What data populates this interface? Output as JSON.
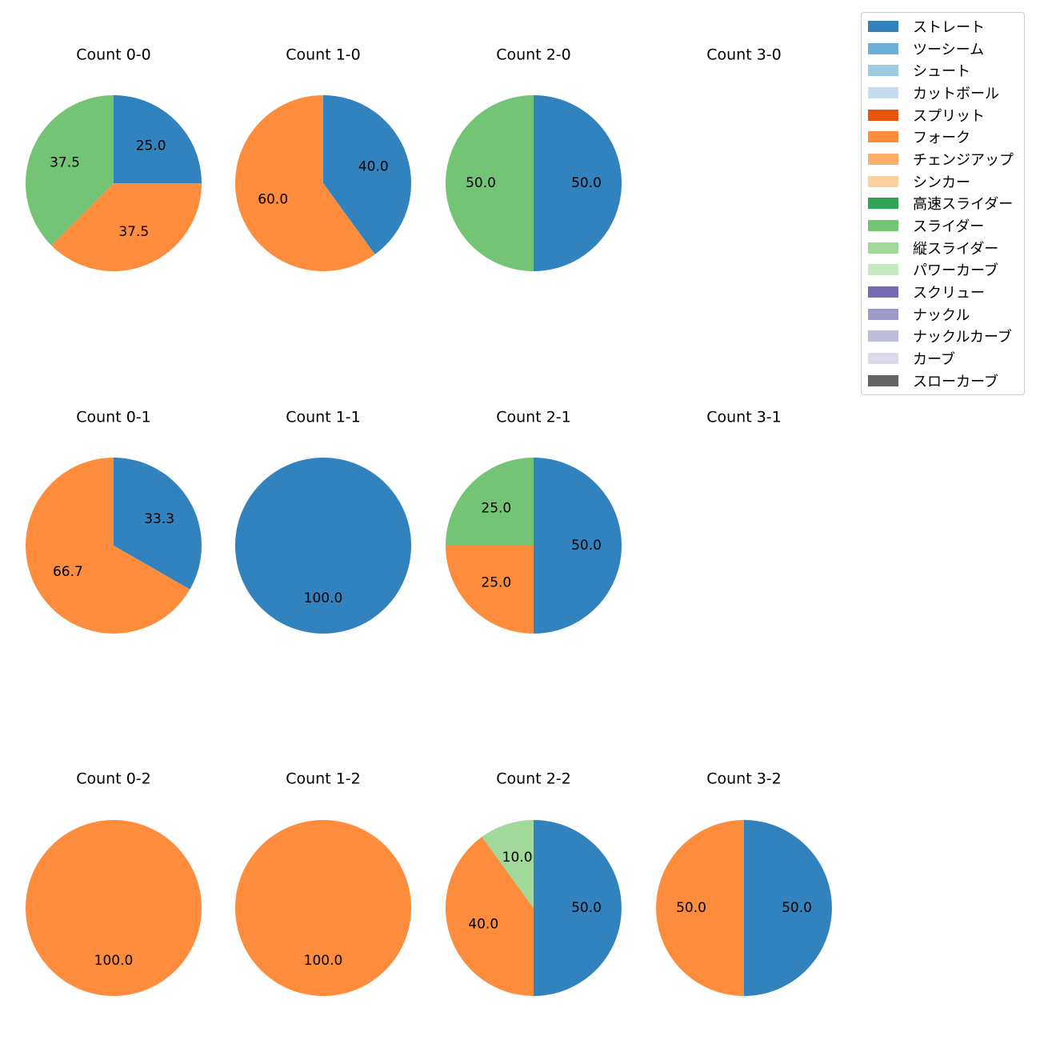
{
  "legend": {
    "items": [
      {
        "label": "ストレート",
        "color": "#3182bd"
      },
      {
        "label": "ツーシーム",
        "color": "#6baed6"
      },
      {
        "label": "シュート",
        "color": "#9ecae1"
      },
      {
        "label": "カットボール",
        "color": "#c6dbef"
      },
      {
        "label": "スプリット",
        "color": "#e6550d"
      },
      {
        "label": "フォーク",
        "color": "#fd8d3c"
      },
      {
        "label": "チェンジアップ",
        "color": "#fdae6b"
      },
      {
        "label": "シンカー",
        "color": "#fdd0a2"
      },
      {
        "label": "高速スライダー",
        "color": "#31a354"
      },
      {
        "label": "スライダー",
        "color": "#74c476"
      },
      {
        "label": "縦スライダー",
        "color": "#a1d99b"
      },
      {
        "label": "パワーカーブ",
        "color": "#c7e9c0"
      },
      {
        "label": "スクリュー",
        "color": "#756bb1"
      },
      {
        "label": "ナックル",
        "color": "#9e9ac8"
      },
      {
        "label": "ナックルカーブ",
        "color": "#bcbddc"
      },
      {
        "label": "カーブ",
        "color": "#dadaeb"
      },
      {
        "label": "スローカーブ",
        "color": "#636363"
      }
    ]
  },
  "chart_data": [
    {
      "type": "pie",
      "title": "Count 0-0",
      "slices": [
        {
          "label": "ストレート",
          "value": 25.0,
          "text": "25.0"
        },
        {
          "label": "フォーク",
          "value": 37.5,
          "text": "37.5"
        },
        {
          "label": "スライダー",
          "value": 37.5,
          "text": "37.5"
        }
      ]
    },
    {
      "type": "pie",
      "title": "Count 1-0",
      "slices": [
        {
          "label": "ストレート",
          "value": 40.0,
          "text": "40.0"
        },
        {
          "label": "フォーク",
          "value": 60.0,
          "text": "60.0"
        }
      ]
    },
    {
      "type": "pie",
      "title": "Count 2-0",
      "slices": [
        {
          "label": "ストレート",
          "value": 50.0,
          "text": "50.0"
        },
        {
          "label": "スライダー",
          "value": 50.0,
          "text": "50.0"
        }
      ]
    },
    {
      "type": "pie",
      "title": "Count 3-0",
      "slices": []
    },
    {
      "type": "pie",
      "title": "Count 0-1",
      "slices": [
        {
          "label": "ストレート",
          "value": 33.3,
          "text": "33.3"
        },
        {
          "label": "フォーク",
          "value": 66.7,
          "text": "66.7"
        }
      ]
    },
    {
      "type": "pie",
      "title": "Count 1-1",
      "slices": [
        {
          "label": "ストレート",
          "value": 100.0,
          "text": "100.0"
        }
      ]
    },
    {
      "type": "pie",
      "title": "Count 2-1",
      "slices": [
        {
          "label": "ストレート",
          "value": 50.0,
          "text": "50.0"
        },
        {
          "label": "フォーク",
          "value": 25.0,
          "text": "25.0"
        },
        {
          "label": "スライダー",
          "value": 25.0,
          "text": "25.0"
        }
      ]
    },
    {
      "type": "pie",
      "title": "Count 3-1",
      "slices": []
    },
    {
      "type": "pie",
      "title": "Count 0-2",
      "slices": [
        {
          "label": "フォーク",
          "value": 100.0,
          "text": "100.0"
        }
      ]
    },
    {
      "type": "pie",
      "title": "Count 1-2",
      "slices": [
        {
          "label": "フォーク",
          "value": 100.0,
          "text": "100.0"
        }
      ]
    },
    {
      "type": "pie",
      "title": "Count 2-2",
      "slices": [
        {
          "label": "ストレート",
          "value": 50.0,
          "text": "50.0"
        },
        {
          "label": "フォーク",
          "value": 40.0,
          "text": "40.0"
        },
        {
          "label": "縦スライダー",
          "value": 10.0,
          "text": "10.0"
        }
      ]
    },
    {
      "type": "pie",
      "title": "Count 3-2",
      "slices": [
        {
          "label": "ストレート",
          "value": 50.0,
          "text": "50.0"
        },
        {
          "label": "フォーク",
          "value": 50.0,
          "text": "50.0"
        }
      ]
    }
  ]
}
